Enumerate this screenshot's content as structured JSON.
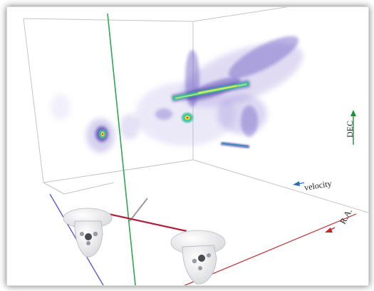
{
  "axes": {
    "dec_label": "DEC",
    "velocity_label": "velocity",
    "ra_label": "R.A."
  },
  "colors": {
    "dec_arrow": "#1f8f3a",
    "velocity_arrow": "#2a6fb0",
    "ra_arrow": "#c0282d",
    "green_line": "#2fa84f",
    "red_line": "#b01e3a",
    "blue_line": "#5a5ac8",
    "volume_purple": "#6c5bc4",
    "volume_green": "#38d59a"
  },
  "icons": {
    "left_controller": "vr-controller-icon",
    "right_controller": "vr-controller-icon"
  }
}
